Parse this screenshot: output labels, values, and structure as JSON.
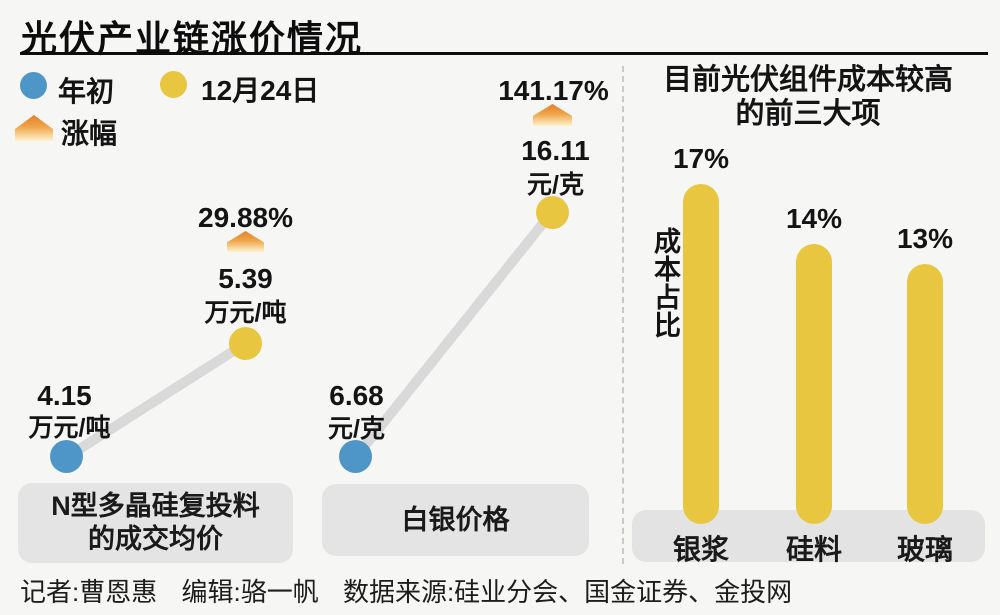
{
  "page": {
    "title": "光伏产业链涨价情况",
    "footer": {
      "reporter": "记者:曹恩惠",
      "editor": "编辑:骆一帆",
      "source": "数据来源:硅业分会、国金证券、金投网"
    }
  },
  "legend": {
    "start_label": "年初",
    "end_label": "12月24日",
    "change_label": "涨幅"
  },
  "colors": {
    "start_dot": "#4f96c8",
    "end_dot": "#e9c63f",
    "bar": "#e9c63f",
    "connector": "#d9d9d9",
    "label_box": "#e4e4e4",
    "background": "#f6f6f5"
  },
  "chart_data": [
    {
      "type": "slope",
      "name": "N型多晶硅复投料的成交均价",
      "name_lines": [
        "N型多晶硅复投料",
        "的成交均价"
      ],
      "start": {
        "when": "年初",
        "value": 4.15,
        "unit": "万元/吨"
      },
      "end": {
        "when": "12月24日",
        "value": 5.39,
        "unit": "万元/吨"
      },
      "change_pct": 29.88,
      "change_label": "29.88%"
    },
    {
      "type": "slope",
      "name": "白银价格",
      "start": {
        "when": "年初",
        "value": 6.68,
        "unit": "元/克"
      },
      "end": {
        "when": "12月24日",
        "value": 16.11,
        "unit": "元/克"
      },
      "change_pct": 141.17,
      "change_label": "141.17%"
    },
    {
      "type": "bar",
      "title": "目前光伏组件成本较高的前三大项",
      "title_lines": [
        "目前光伏组件成本较高",
        "的前三大项"
      ],
      "ylabel": "成本占比",
      "categories": [
        "银浆",
        "硅料",
        "玻璃"
      ],
      "values": [
        17,
        14,
        13
      ],
      "value_labels": [
        "17%",
        "14%",
        "13%"
      ],
      "unit": "%",
      "ylim": [
        0,
        17
      ]
    }
  ]
}
